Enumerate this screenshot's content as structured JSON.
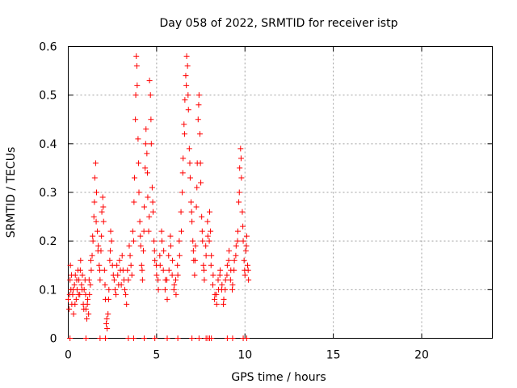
{
  "chart_data": {
    "type": "scatter",
    "title": "Day 058 of 2022, SRMTID for receiver istp",
    "xlabel": "GPS time / hours",
    "ylabel": "SRMTID / TECUs",
    "xlim": [
      0,
      24
    ],
    "ylim": [
      0,
      0.6
    ],
    "xticks": [
      0,
      5,
      10,
      15,
      20
    ],
    "yticks": [
      0,
      0.1,
      0.2,
      0.3,
      0.4,
      0.5,
      0.6
    ],
    "xtick_labels": [
      "0",
      "5",
      "10",
      "15",
      "20"
    ],
    "ytick_labels": [
      "0",
      "0.1",
      "0.2",
      "0.3",
      "0.4",
      "0.5",
      "0.6"
    ],
    "grid": true,
    "marker": "+",
    "color": "#ff0000",
    "series": [
      {
        "name": "SRMTID",
        "points": [
          [
            0.0,
            0.08
          ],
          [
            0.05,
            0.06
          ],
          [
            0.1,
            0.12
          ],
          [
            0.12,
            0.15
          ],
          [
            0.15,
            0.1
          ],
          [
            0.2,
            0.07
          ],
          [
            0.25,
            0.09
          ],
          [
            0.3,
            0.05
          ],
          [
            0.35,
            0.11
          ],
          [
            0.4,
            0.13
          ],
          [
            0.45,
            0.08
          ],
          [
            0.5,
            0.1
          ],
          [
            0.55,
            0.14
          ],
          [
            0.6,
            0.12
          ],
          [
            0.65,
            0.09
          ],
          [
            0.7,
            0.16
          ],
          [
            0.75,
            0.11
          ],
          [
            0.8,
            0.13
          ],
          [
            0.85,
            0.07
          ],
          [
            0.9,
            0.1
          ],
          [
            0.95,
            0.12
          ],
          [
            1.0,
            0.06
          ],
          [
            1.05,
            0.04
          ],
          [
            1.1,
            0.08
          ],
          [
            1.15,
            0.05
          ],
          [
            1.2,
            0.09
          ],
          [
            1.25,
            0.11
          ],
          [
            1.3,
            0.14
          ],
          [
            1.35,
            0.17
          ],
          [
            1.4,
            0.2
          ],
          [
            1.45,
            0.25
          ],
          [
            1.5,
            0.33
          ],
          [
            1.55,
            0.36
          ],
          [
            1.6,
            0.3
          ],
          [
            1.65,
            0.22
          ],
          [
            1.7,
            0.19
          ],
          [
            1.75,
            0.15
          ],
          [
            1.8,
            0.12
          ],
          [
            1.85,
            0.18
          ],
          [
            1.9,
            0.26
          ],
          [
            1.95,
            0.29
          ],
          [
            2.0,
            0.24
          ],
          [
            2.05,
            0.14
          ],
          [
            2.1,
            0.08
          ],
          [
            2.15,
            0.03
          ],
          [
            2.2,
            0.02
          ],
          [
            2.25,
            0.05
          ],
          [
            2.3,
            0.1
          ],
          [
            2.35,
            0.16
          ],
          [
            2.4,
            0.22
          ],
          [
            2.45,
            0.2
          ],
          [
            2.5,
            0.15
          ],
          [
            2.6,
            0.12
          ],
          [
            2.7,
            0.09
          ],
          [
            2.8,
            0.13
          ],
          [
            2.9,
            0.16
          ],
          [
            3.0,
            0.11
          ],
          [
            3.1,
            0.14
          ],
          [
            3.2,
            0.1
          ],
          [
            3.3,
            0.07
          ],
          [
            3.4,
            0.12
          ],
          [
            3.5,
            0.17
          ],
          [
            3.6,
            0.13
          ],
          [
            3.7,
            0.2
          ],
          [
            3.75,
            0.33
          ],
          [
            3.8,
            0.45
          ],
          [
            3.85,
            0.58
          ],
          [
            3.9,
            0.52
          ],
          [
            3.95,
            0.41
          ],
          [
            4.0,
            0.3
          ],
          [
            4.05,
            0.24
          ],
          [
            4.1,
            0.19
          ],
          [
            4.15,
            0.15
          ],
          [
            4.2,
            0.12
          ],
          [
            4.25,
            0.18
          ],
          [
            4.3,
            0.27
          ],
          [
            4.35,
            0.35
          ],
          [
            4.4,
            0.43
          ],
          [
            4.45,
            0.38
          ],
          [
            4.5,
            0.29
          ],
          [
            4.55,
            0.22
          ],
          [
            4.6,
            0.53
          ],
          [
            4.65,
            0.5
          ],
          [
            4.7,
            0.4
          ],
          [
            4.75,
            0.31
          ],
          [
            4.8,
            0.26
          ],
          [
            4.85,
            0.2
          ],
          [
            4.9,
            0.16
          ],
          [
            5.0,
            0.13
          ],
          [
            5.1,
            0.1
          ],
          [
            5.2,
            0.15
          ],
          [
            5.3,
            0.2
          ],
          [
            5.4,
            0.18
          ],
          [
            5.5,
            0.12
          ],
          [
            5.6,
            0.08
          ],
          [
            5.7,
            0.14
          ],
          [
            5.8,
            0.19
          ],
          [
            5.9,
            0.16
          ],
          [
            6.0,
            0.11
          ],
          [
            6.1,
            0.09
          ],
          [
            6.2,
            0.13
          ],
          [
            6.3,
            0.17
          ],
          [
            6.4,
            0.22
          ],
          [
            6.45,
            0.3
          ],
          [
            6.5,
            0.37
          ],
          [
            6.55,
            0.44
          ],
          [
            6.6,
            0.49
          ],
          [
            6.65,
            0.54
          ],
          [
            6.7,
            0.58
          ],
          [
            6.75,
            0.56
          ],
          [
            6.8,
            0.47
          ],
          [
            6.85,
            0.39
          ],
          [
            6.9,
            0.33
          ],
          [
            6.95,
            0.28
          ],
          [
            7.0,
            0.24
          ],
          [
            7.05,
            0.2
          ],
          [
            7.1,
            0.16
          ],
          [
            7.15,
            0.13
          ],
          [
            7.2,
            0.19
          ],
          [
            7.25,
            0.27
          ],
          [
            7.3,
            0.36
          ],
          [
            7.35,
            0.45
          ],
          [
            7.4,
            0.5
          ],
          [
            7.45,
            0.42
          ],
          [
            7.5,
            0.32
          ],
          [
            7.55,
            0.25
          ],
          [
            7.6,
            0.2
          ],
          [
            7.65,
            0.15
          ],
          [
            7.7,
            0.12
          ],
          [
            7.8,
            0.17
          ],
          [
            7.9,
            0.21
          ],
          [
            8.0,
            0.26
          ],
          [
            8.05,
            0.22
          ],
          [
            8.1,
            0.17
          ],
          [
            8.2,
            0.13
          ],
          [
            8.3,
            0.09
          ],
          [
            8.4,
            0.07
          ],
          [
            8.5,
            0.1
          ],
          [
            8.6,
            0.14
          ],
          [
            8.7,
            0.11
          ],
          [
            8.8,
            0.08
          ],
          [
            8.9,
            0.12
          ],
          [
            9.0,
            0.15
          ],
          [
            9.1,
            0.18
          ],
          [
            9.2,
            0.14
          ],
          [
            9.3,
            0.11
          ],
          [
            9.4,
            0.16
          ],
          [
            9.5,
            0.19
          ],
          [
            9.6,
            0.22
          ],
          [
            9.65,
            0.28
          ],
          [
            9.7,
            0.35
          ],
          [
            9.75,
            0.39
          ],
          [
            9.8,
            0.33
          ],
          [
            9.85,
            0.26
          ],
          [
            9.9,
            0.2
          ],
          [
            9.95,
            0.16
          ],
          [
            10.0,
            0.13
          ],
          [
            10.05,
            0.18
          ],
          [
            10.1,
            0.21
          ],
          [
            10.15,
            0.15
          ],
          [
            10.2,
            0.12
          ],
          [
            0.08,
            0.09
          ],
          [
            0.18,
            0.13
          ],
          [
            0.28,
            0.1
          ],
          [
            0.38,
            0.07
          ],
          [
            0.48,
            0.12
          ],
          [
            0.58,
            0.09
          ],
          [
            0.68,
            0.14
          ],
          [
            0.78,
            0.1
          ],
          [
            0.88,
            0.06
          ],
          [
            0.98,
            0.09
          ],
          [
            1.08,
            0.07
          ],
          [
            1.18,
            0.12
          ],
          [
            1.28,
            0.16
          ],
          [
            1.38,
            0.21
          ],
          [
            1.48,
            0.28
          ],
          [
            1.58,
            0.24
          ],
          [
            1.68,
            0.18
          ],
          [
            1.78,
            0.14
          ],
          [
            1.88,
            0.21
          ],
          [
            1.98,
            0.27
          ],
          [
            2.08,
            0.11
          ],
          [
            2.18,
            0.04
          ],
          [
            2.28,
            0.08
          ],
          [
            2.38,
            0.18
          ],
          [
            2.55,
            0.13
          ],
          [
            2.65,
            0.1
          ],
          [
            2.75,
            0.15
          ],
          [
            2.85,
            0.11
          ],
          [
            2.95,
            0.14
          ],
          [
            3.05,
            0.17
          ],
          [
            3.15,
            0.12
          ],
          [
            3.25,
            0.09
          ],
          [
            3.35,
            0.14
          ],
          [
            3.45,
            0.19
          ],
          [
            3.55,
            0.15
          ],
          [
            3.65,
            0.22
          ],
          [
            3.72,
            0.28
          ],
          [
            3.82,
            0.5
          ],
          [
            3.88,
            0.56
          ],
          [
            3.98,
            0.36
          ],
          [
            4.08,
            0.21
          ],
          [
            4.18,
            0.14
          ],
          [
            4.28,
            0.22
          ],
          [
            4.38,
            0.4
          ],
          [
            4.48,
            0.34
          ],
          [
            4.58,
            0.25
          ],
          [
            4.68,
            0.45
          ],
          [
            4.78,
            0.28
          ],
          [
            4.88,
            0.18
          ],
          [
            4.98,
            0.15
          ],
          [
            5.08,
            0.12
          ],
          [
            5.18,
            0.17
          ],
          [
            5.28,
            0.22
          ],
          [
            5.38,
            0.14
          ],
          [
            5.48,
            0.1
          ],
          [
            5.58,
            0.12
          ],
          [
            5.68,
            0.17
          ],
          [
            5.78,
            0.21
          ],
          [
            5.88,
            0.13
          ],
          [
            5.98,
            0.1
          ],
          [
            6.08,
            0.12
          ],
          [
            6.18,
            0.15
          ],
          [
            6.28,
            0.2
          ],
          [
            6.38,
            0.26
          ],
          [
            6.48,
            0.34
          ],
          [
            6.58,
            0.42
          ],
          [
            6.68,
            0.52
          ],
          [
            6.78,
            0.5
          ],
          [
            6.88,
            0.36
          ],
          [
            6.98,
            0.26
          ],
          [
            7.08,
            0.18
          ],
          [
            7.18,
            0.16
          ],
          [
            7.28,
            0.31
          ],
          [
            7.38,
            0.48
          ],
          [
            7.48,
            0.36
          ],
          [
            7.58,
            0.22
          ],
          [
            7.68,
            0.14
          ],
          [
            7.78,
            0.19
          ],
          [
            7.88,
            0.24
          ],
          [
            7.98,
            0.2
          ],
          [
            8.08,
            0.15
          ],
          [
            8.18,
            0.11
          ],
          [
            8.28,
            0.08
          ],
          [
            8.38,
            0.09
          ],
          [
            8.48,
            0.12
          ],
          [
            8.58,
            0.13
          ],
          [
            8.68,
            0.1
          ],
          [
            8.78,
            0.07
          ],
          [
            8.88,
            0.1
          ],
          [
            8.98,
            0.13
          ],
          [
            9.08,
            0.16
          ],
          [
            9.18,
            0.12
          ],
          [
            9.28,
            0.1
          ],
          [
            9.38,
            0.14
          ],
          [
            9.48,
            0.17
          ],
          [
            9.58,
            0.2
          ],
          [
            9.68,
            0.3
          ],
          [
            9.78,
            0.37
          ],
          [
            9.88,
            0.23
          ],
          [
            9.98,
            0.14
          ],
          [
            10.08,
            0.19
          ],
          [
            10.18,
            0.14
          ]
        ]
      }
    ],
    "zero_markers": [
      0.1,
      1.0,
      1.8,
      2.1,
      3.4,
      3.7,
      4.3,
      4.9,
      5.6,
      6.2,
      7.0,
      7.4,
      7.8,
      7.9,
      8.0,
      8.1,
      9.0,
      9.3,
      9.9,
      10.1
    ]
  }
}
